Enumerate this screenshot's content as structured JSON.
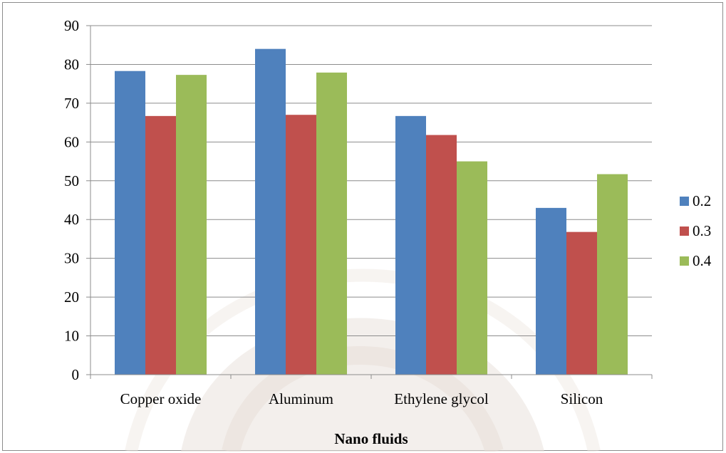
{
  "chart_data": {
    "type": "bar",
    "title": "",
    "xlabel": "Nano fluids",
    "ylabel": "",
    "ylim": [
      0,
      90
    ],
    "yticks": [
      "0",
      "10",
      "20",
      "30",
      "40",
      "50",
      "60",
      "70",
      "80",
      "90"
    ],
    "categories": [
      "Copper oxide",
      "Aluminum",
      "Ethylene glycol",
      "Silicon"
    ],
    "series": [
      {
        "name": "0.2",
        "color": "#4f81bd",
        "values": [
          78.3,
          84.0,
          66.7,
          43.0
        ]
      },
      {
        "name": "0.3",
        "color": "#c0504d",
        "values": [
          66.7,
          67.0,
          61.8,
          36.8
        ]
      },
      {
        "name": "0.4",
        "color": "#9bbb59",
        "values": [
          77.3,
          77.9,
          55.0,
          51.7
        ]
      }
    ],
    "grid": true,
    "legend_position": "right"
  }
}
